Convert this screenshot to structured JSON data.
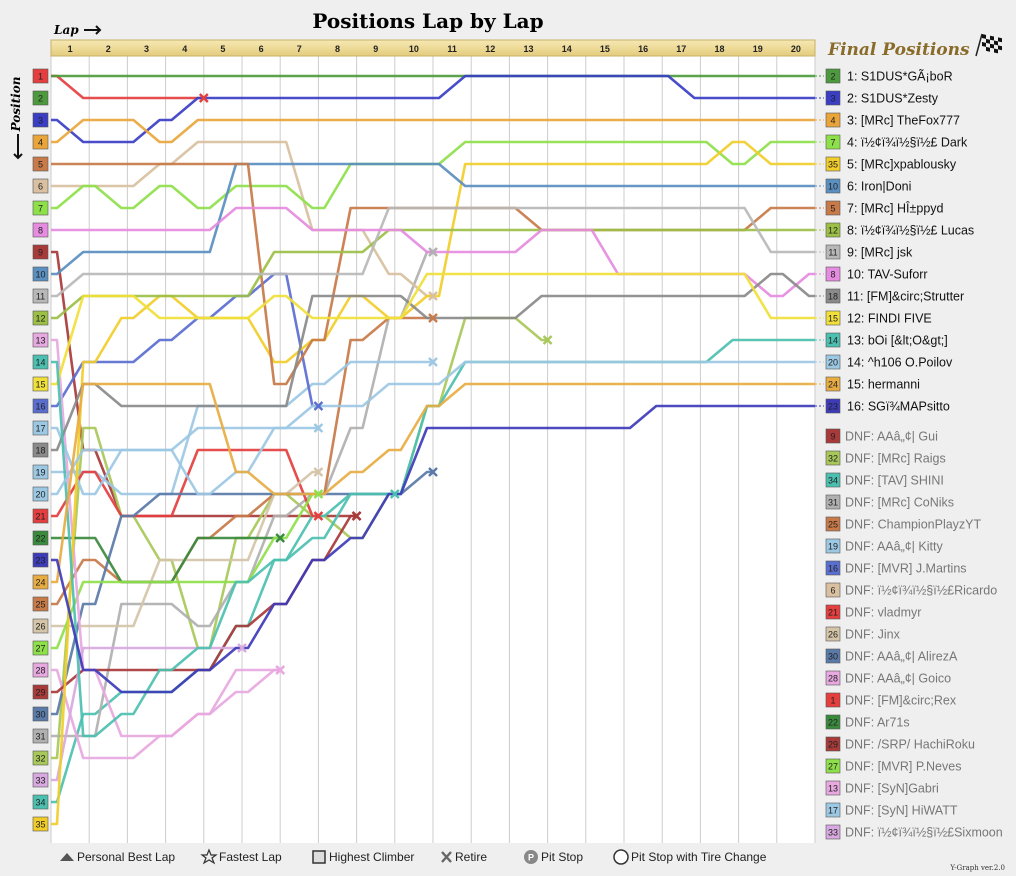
{
  "chart_data": {
    "type": "line",
    "title": "Positions Lap by Lap",
    "xlabel": "Lap",
    "ylabel": "Position",
    "laps": [
      "1",
      "2",
      "3",
      "4",
      "5",
      "6",
      "7",
      "8",
      "9",
      "10",
      "11",
      "12",
      "13",
      "14",
      "15",
      "16",
      "17",
      "18",
      "19",
      "20"
    ],
    "start_positions": [
      "1",
      "2",
      "3",
      "4",
      "5",
      "6",
      "7",
      "8",
      "9",
      "10",
      "11",
      "12",
      "13",
      "14",
      "15",
      "16",
      "17",
      "18",
      "19",
      "20",
      "21",
      "22",
      "23",
      "24",
      "25",
      "26",
      "27",
      "28",
      "29",
      "30",
      "31",
      "32",
      "33",
      "34",
      "35"
    ],
    "final_title": "Final Positions",
    "series": [
      {
        "grid": "2",
        "color": "#4d9a3e",
        "text": "1: S1DUS*GÃ¡boR",
        "positions": [
          1,
          1,
          1,
          1,
          1,
          1,
          1,
          1,
          1,
          1,
          1,
          1,
          1,
          1,
          1,
          1,
          1,
          1,
          1,
          1,
          1
        ]
      },
      {
        "grid": "3",
        "color": "#3a3ec4",
        "text": "2: S1DUS*Zesty",
        "positions": [
          3,
          4,
          4,
          3,
          2,
          2,
          2,
          2,
          2,
          2,
          2,
          1,
          1,
          1,
          1,
          1,
          1,
          2,
          2,
          2,
          2
        ]
      },
      {
        "grid": "4",
        "color": "#e9a53a",
        "text": "3: [MRc] TheFox777",
        "positions": [
          4,
          3,
          3,
          4,
          3,
          3,
          3,
          3,
          3,
          3,
          3,
          3,
          3,
          3,
          3,
          3,
          3,
          3,
          3,
          3,
          3
        ]
      },
      {
        "grid": "7",
        "color": "#8ee04a",
        "text": "4: ï½¢ï¾ï½§ï½£ Dark",
        "positions": [
          7,
          6,
          7,
          6,
          7,
          6,
          6,
          7,
          5,
          5,
          5,
          4,
          4,
          4,
          4,
          4,
          4,
          4,
          5,
          4,
          4
        ]
      },
      {
        "grid": "35",
        "color": "#f1cd2a",
        "text": "5: [MRc]xpablousky",
        "positions": [
          35,
          14,
          12,
          11,
          12,
          12,
          14,
          13,
          11,
          12,
          11,
          5,
          5,
          5,
          5,
          5,
          5,
          5,
          4,
          5,
          5
        ]
      },
      {
        "grid": "10",
        "color": "#5a8fc0",
        "text": "6: Iron|Doni",
        "positions": [
          10,
          9,
          9,
          9,
          9,
          5,
          5,
          5,
          5,
          5,
          5,
          6,
          6,
          6,
          6,
          6,
          6,
          6,
          6,
          6,
          6
        ]
      },
      {
        "grid": "5",
        "color": "#c87a48",
        "text": "7: [MRc] HÎ±ppyd",
        "positions": [
          5,
          5,
          5,
          5,
          5,
          5,
          15,
          13,
          7,
          7,
          7,
          7,
          7,
          8,
          8,
          8,
          8,
          8,
          8,
          7,
          7
        ]
      },
      {
        "grid": "12",
        "color": "#9cbf46",
        "text": "8: ï½¢ï¾ï½§ï½£ Lucas",
        "positions": [
          12,
          11,
          11,
          11,
          11,
          11,
          9,
          9,
          9,
          8,
          8,
          8,
          8,
          8,
          8,
          8,
          8,
          8,
          8,
          8,
          8
        ]
      },
      {
        "grid": "11",
        "color": "#b8b8b8",
        "text": "9: [MRc] jsk",
        "positions": [
          11,
          10,
          10,
          10,
          10,
          10,
          10,
          10,
          10,
          7,
          7,
          7,
          7,
          7,
          7,
          7,
          7,
          7,
          7,
          9,
          9
        ]
      },
      {
        "grid": "8",
        "color": "#e58be0",
        "text": "10: TAV-Suforr",
        "positions": [
          8,
          8,
          8,
          8,
          8,
          7,
          7,
          8,
          8,
          8,
          9,
          9,
          9,
          8,
          8,
          10,
          10,
          10,
          10,
          11,
          10
        ]
      },
      {
        "grid": "18",
        "color": "#8a8a8a",
        "text": "11: [FM]&circ;Strutter",
        "positions": [
          18,
          15,
          16,
          16,
          16,
          16,
          16,
          11,
          11,
          11,
          12,
          12,
          12,
          11,
          11,
          11,
          11,
          11,
          11,
          10,
          11
        ]
      },
      {
        "grid": "15",
        "color": "#f1df3a",
        "text": "12: FINDI FIVE",
        "positions": [
          15,
          11,
          11,
          12,
          12,
          12,
          11,
          12,
          12,
          12,
          10,
          10,
          10,
          10,
          10,
          10,
          10,
          10,
          10,
          12,
          12
        ]
      },
      {
        "grid": "14",
        "color": "#4cc0b0",
        "text": "13: bOi [&lt;O&gt;]",
        "positions": [
          14,
          31,
          30,
          28,
          27,
          24,
          23,
          22,
          20,
          20,
          16,
          14,
          14,
          14,
          14,
          14,
          14,
          14,
          13,
          13,
          13
        ]
      },
      {
        "grid": "20",
        "color": "#9cc8e4",
        "text": "14: ^h106 O.Poilov",
        "positions": [
          20,
          18,
          18,
          18,
          20,
          19,
          17,
          16,
          16,
          15,
          15,
          14,
          14,
          14,
          14,
          14,
          14,
          14,
          14,
          14,
          14
        ]
      },
      {
        "grid": "24",
        "color": "#e8ad42",
        "text": "15: hermanni",
        "positions": [
          24,
          15,
          15,
          15,
          15,
          19,
          20,
          20,
          19,
          18,
          16,
          15,
          15,
          15,
          15,
          15,
          15,
          15,
          15,
          15,
          15
        ]
      },
      {
        "grid": "23",
        "color": "#3d3bb8",
        "text": "16: SGï¾MAPsitto",
        "positions": [
          23,
          28,
          29,
          29,
          28,
          27,
          25,
          23,
          22,
          20,
          17,
          17,
          17,
          17,
          17,
          17,
          16,
          16,
          16,
          16,
          16
        ]
      }
    ],
    "dnf": [
      {
        "grid": "9",
        "color": "#a83a3a",
        "text": "DNF: AAâ„¢| Gui",
        "positions": [
          9,
          18,
          21,
          21,
          21,
          21,
          21,
          21,
          21
        ]
      },
      {
        "grid": "32",
        "color": "#a8c85a",
        "text": "DNF: [MRc] Raigs",
        "positions": [
          32,
          17,
          21,
          23,
          27,
          22,
          20,
          21,
          22,
          20,
          16,
          12,
          12,
          13
        ]
      },
      {
        "grid": "34",
        "color": "#4cc0b0",
        "text": "DNF: [TAV] SHINI",
        "positions": [
          34,
          30,
          29,
          29,
          28,
          26,
          23,
          21,
          20,
          20
        ]
      },
      {
        "grid": "31",
        "color": "#b0b0b0",
        "text": "DNF: [MRc] CoNiks",
        "positions": [
          31,
          31,
          25,
          25,
          26,
          24,
          21,
          20,
          17,
          12,
          9
        ]
      },
      {
        "grid": "25",
        "color": "#c87a48",
        "text": "DNF: ChampionPlayzYT",
        "positions": [
          25,
          23,
          24,
          24,
          22,
          21,
          20,
          20,
          13,
          12,
          12
        ]
      },
      {
        "grid": "19",
        "color": "#9cc8e4",
        "text": "DNF: AAâ„¢| Kitty",
        "positions": [
          19,
          19,
          20,
          20,
          16,
          16,
          16,
          15,
          14,
          14,
          14
        ]
      },
      {
        "grid": "16",
        "color": "#5a6ed0",
        "text": "DNF: [MVR] J.Martins",
        "positions": [
          16,
          14,
          14,
          13,
          12,
          11,
          10,
          16
        ]
      },
      {
        "grid": "6",
        "color": "#d8c0a0",
        "text": "DNF: ï½¢ï¾ï½§ï½£Ricardo",
        "positions": [
          6,
          6,
          6,
          5,
          4,
          4,
          4,
          8,
          8,
          10,
          11
        ]
      },
      {
        "grid": "21",
        "color": "#e43e3e",
        "text": "DNF: vladmyr",
        "positions": [
          21,
          19,
          21,
          21,
          18,
          18,
          18,
          21
        ]
      },
      {
        "grid": "26",
        "color": "#d4c4a8",
        "text": "DNF: Jinx",
        "positions": [
          26,
          26,
          26,
          23,
          23,
          23,
          20,
          19
        ]
      },
      {
        "grid": "30",
        "color": "#5a7aa8",
        "text": "DNF: AAâ„¢| AlirezA",
        "positions": [
          30,
          25,
          21,
          20,
          20,
          20,
          20,
          20,
          20,
          20,
          19
        ]
      },
      {
        "grid": "28",
        "color": "#e8a8e0",
        "text": "DNF: AAâ„¢| Goico",
        "positions": [
          28,
          32,
          32,
          31,
          30,
          28,
          28
        ]
      },
      {
        "grid": "1",
        "color": "#e43e3e",
        "text": "DNF: [FM]&circ;Rex",
        "positions": [
          1,
          2,
          2,
          2,
          2
        ]
      },
      {
        "grid": "22",
        "color": "#3a8a3e",
        "text": "DNF: Ar71s",
        "positions": [
          22,
          22,
          24,
          24,
          22,
          22,
          22
        ]
      },
      {
        "grid": "29",
        "color": "#a83a3a",
        "text": "DNF: /SRP/ HachiRoku",
        "positions": [
          29,
          28,
          28,
          28,
          28,
          26,
          25,
          23,
          21
        ]
      },
      {
        "grid": "27",
        "color": "#8ee04a",
        "text": "DNF: [MVR] P.Neves",
        "positions": [
          27,
          24,
          24,
          24,
          24,
          24,
          22,
          20
        ]
      },
      {
        "grid": "13",
        "color": "#e8a8e0",
        "text": "DNF: [SyN]Gabri",
        "positions": [
          13,
          28,
          31,
          31,
          30,
          29,
          28
        ]
      },
      {
        "grid": "17",
        "color": "#9cc8e4",
        "text": "DNF: [SyN] HiWATT",
        "positions": [
          17,
          20,
          18,
          18,
          17,
          17,
          17,
          17
        ]
      },
      {
        "grid": "33",
        "color": "#d8a8e0",
        "text": "DNF: ï½¢ï¾ï½§ï½£Sixmoon",
        "positions": [
          33,
          27,
          27,
          27,
          27,
          27
        ]
      }
    ]
  },
  "legend": {
    "pb": "Personal Best Lap",
    "fastest": "Fastest Lap",
    "climber": "Highest Climber",
    "retire": "Retire",
    "pit": "Pit Stop",
    "pit_tire": "Pit Stop with Tire Change",
    "pit_mark": "P"
  },
  "version": "Y-Graph ver.2.0"
}
